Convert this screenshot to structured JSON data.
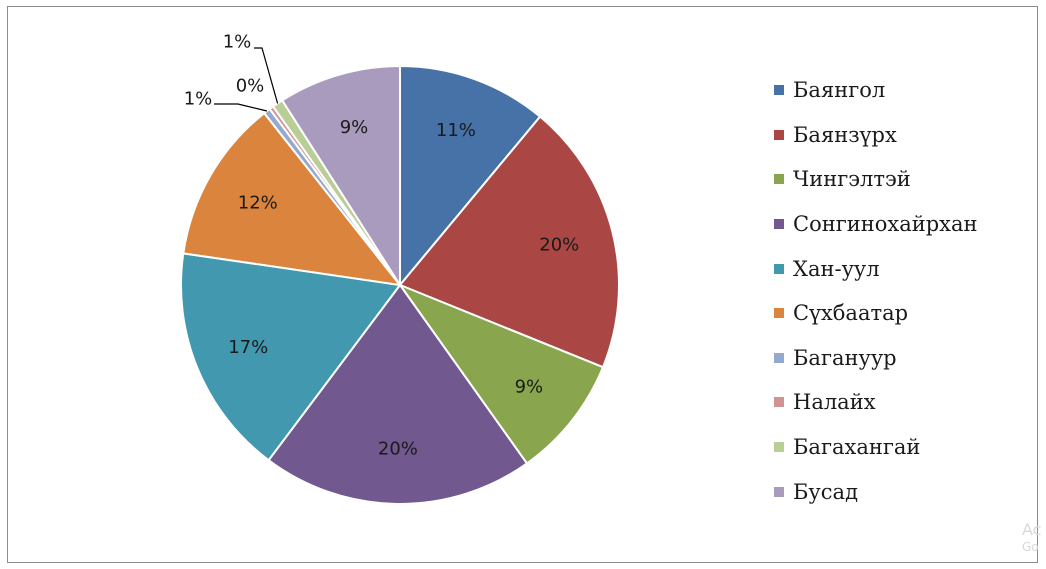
{
  "chart_data": {
    "type": "pie",
    "series": [
      {
        "label": "Баянгол",
        "value": 11,
        "value_label": "11%",
        "color": "#4672a8"
      },
      {
        "label": "Баянзүрх",
        "value": 20,
        "value_label": "20%",
        "color": "#aa4744"
      },
      {
        "label": "Чингэлтэй",
        "value": 9,
        "value_label": "9%",
        "color": "#89a54e"
      },
      {
        "label": "Сонгинохайрхан",
        "value": 20,
        "value_label": "20%",
        "color": "#71588f"
      },
      {
        "label": "Хан-уул",
        "value": 17,
        "value_label": "17%",
        "color": "#4198af"
      },
      {
        "label": "Сүхбаатар",
        "value": 12,
        "value_label": "12%",
        "color": "#db843d"
      },
      {
        "label": "Багануур",
        "value": 0.5,
        "value_label": "1%",
        "color": "#93a9cf"
      },
      {
        "label": "Налайх",
        "value": 0.3,
        "value_label": "0%",
        "color": "#d19392"
      },
      {
        "label": "Багахангай",
        "value": 0.8,
        "value_label": "1%",
        "color": "#b9cd96"
      },
      {
        "label": "Бусад",
        "value": 9,
        "value_label": "9%",
        "color": "#a99bbd"
      }
    ],
    "legend_position": "right"
  },
  "watermark": {
    "line1": "Ac",
    "line2": "Go"
  }
}
